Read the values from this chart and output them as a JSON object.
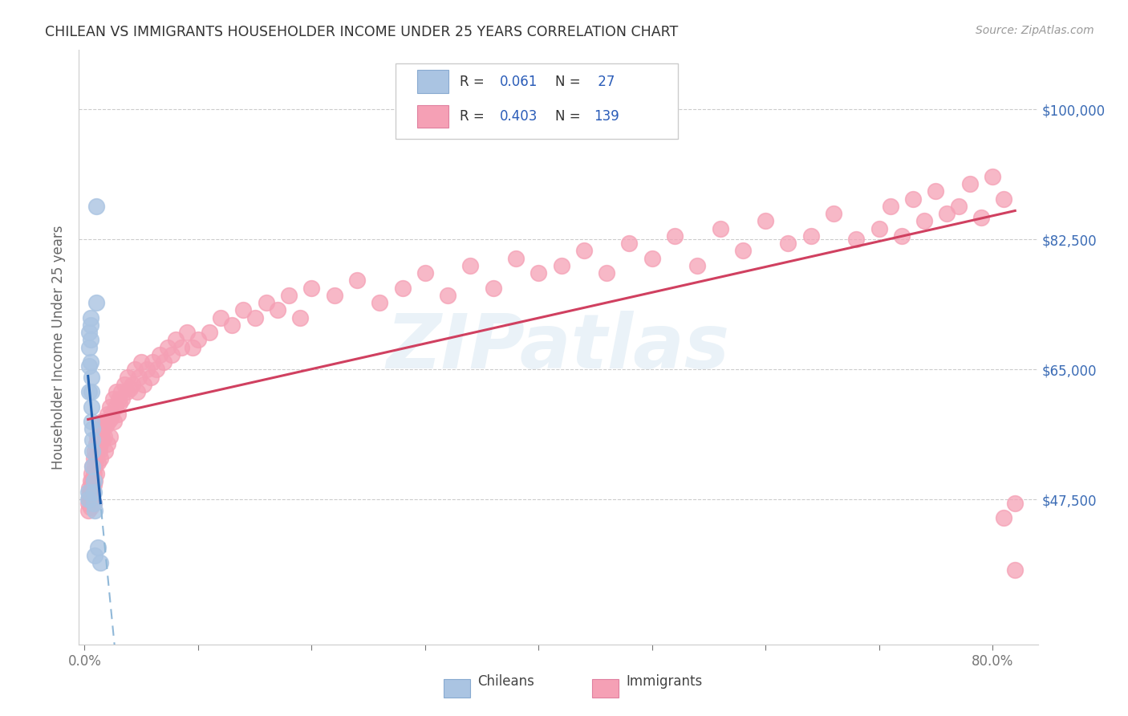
{
  "title": "CHILEAN VS IMMIGRANTS HOUSEHOLDER INCOME UNDER 25 YEARS CORRELATION CHART",
  "source": "Source: ZipAtlas.com",
  "ylabel": "Householder Income Under 25 years",
  "ytick_labels": [
    "$47,500",
    "$65,000",
    "$82,500",
    "$100,000"
  ],
  "ytick_values": [
    47500,
    65000,
    82500,
    100000
  ],
  "ymin": 28000,
  "ymax": 108000,
  "xmin": -0.005,
  "xmax": 0.84,
  "chilean_color": "#aac4e2",
  "immigrant_color": "#f5a0b5",
  "chilean_line_color": "#2060b0",
  "immigrant_line_color": "#d04060",
  "dashed_line_color": "#90b8d8",
  "watermark": "ZIPatlas",
  "chileans_x": [
    0.003,
    0.003,
    0.004,
    0.004,
    0.004,
    0.004,
    0.005,
    0.005,
    0.005,
    0.005,
    0.006,
    0.006,
    0.006,
    0.006,
    0.007,
    0.007,
    0.007,
    0.007,
    0.008,
    0.008,
    0.008,
    0.009,
    0.009,
    0.01,
    0.01,
    0.012,
    0.014
  ],
  "chileans_y": [
    47500,
    48500,
    62000,
    65500,
    68000,
    70000,
    71000,
    72000,
    69000,
    66000,
    64000,
    62000,
    60000,
    58000,
    57000,
    55500,
    54000,
    52000,
    50000,
    48500,
    47000,
    46000,
    40000,
    87000,
    74000,
    41000,
    39000
  ],
  "immigrants_x": [
    0.003,
    0.003,
    0.004,
    0.004,
    0.004,
    0.005,
    0.005,
    0.005,
    0.005,
    0.006,
    0.006,
    0.006,
    0.007,
    0.007,
    0.007,
    0.008,
    0.008,
    0.008,
    0.008,
    0.009,
    0.009,
    0.009,
    0.01,
    0.01,
    0.01,
    0.011,
    0.011,
    0.012,
    0.012,
    0.013,
    0.013,
    0.014,
    0.014,
    0.015,
    0.015,
    0.016,
    0.016,
    0.017,
    0.018,
    0.018,
    0.019,
    0.02,
    0.02,
    0.021,
    0.022,
    0.022,
    0.023,
    0.024,
    0.025,
    0.026,
    0.027,
    0.028,
    0.029,
    0.03,
    0.031,
    0.032,
    0.033,
    0.035,
    0.037,
    0.038,
    0.04,
    0.042,
    0.044,
    0.046,
    0.048,
    0.05,
    0.052,
    0.055,
    0.058,
    0.06,
    0.063,
    0.066,
    0.07,
    0.073,
    0.077,
    0.08,
    0.085,
    0.09,
    0.095,
    0.1,
    0.11,
    0.12,
    0.13,
    0.14,
    0.15,
    0.16,
    0.17,
    0.18,
    0.19,
    0.2,
    0.22,
    0.24,
    0.26,
    0.28,
    0.3,
    0.32,
    0.34,
    0.36,
    0.38,
    0.4,
    0.42,
    0.44,
    0.46,
    0.48,
    0.5,
    0.52,
    0.54,
    0.56,
    0.58,
    0.6,
    0.62,
    0.64,
    0.66,
    0.68,
    0.7,
    0.71,
    0.72,
    0.73,
    0.74,
    0.75,
    0.76,
    0.77,
    0.78,
    0.79,
    0.8,
    0.81,
    0.81,
    0.82,
    0.82
  ],
  "immigrants_y": [
    47000,
    46000,
    48000,
    47500,
    49000,
    47500,
    48500,
    50000,
    46500,
    49000,
    51000,
    47500,
    50000,
    52000,
    48000,
    51000,
    53000,
    49500,
    47000,
    52000,
    54000,
    50000,
    53000,
    55000,
    51000,
    54000,
    56000,
    55000,
    52500,
    54000,
    57000,
    55000,
    53000,
    56000,
    58000,
    55500,
    57000,
    56000,
    58000,
    54000,
    57500,
    59000,
    55000,
    58000,
    60000,
    56000,
    58500,
    59000,
    61000,
    58000,
    60000,
    62000,
    59000,
    61000,
    60500,
    62000,
    61000,
    63000,
    62000,
    64000,
    62500,
    63000,
    65000,
    62000,
    64000,
    66000,
    63000,
    65000,
    64000,
    66000,
    65000,
    67000,
    66000,
    68000,
    67000,
    69000,
    68000,
    70000,
    68000,
    69000,
    70000,
    72000,
    71000,
    73000,
    72000,
    74000,
    73000,
    75000,
    72000,
    76000,
    75000,
    77000,
    74000,
    76000,
    78000,
    75000,
    79000,
    76000,
    80000,
    78000,
    79000,
    81000,
    78000,
    82000,
    80000,
    83000,
    79000,
    84000,
    81000,
    85000,
    82000,
    83000,
    86000,
    82500,
    84000,
    87000,
    83000,
    88000,
    85000,
    89000,
    86000,
    87000,
    90000,
    85500,
    91000,
    88000,
    45000,
    47000,
    38000
  ]
}
